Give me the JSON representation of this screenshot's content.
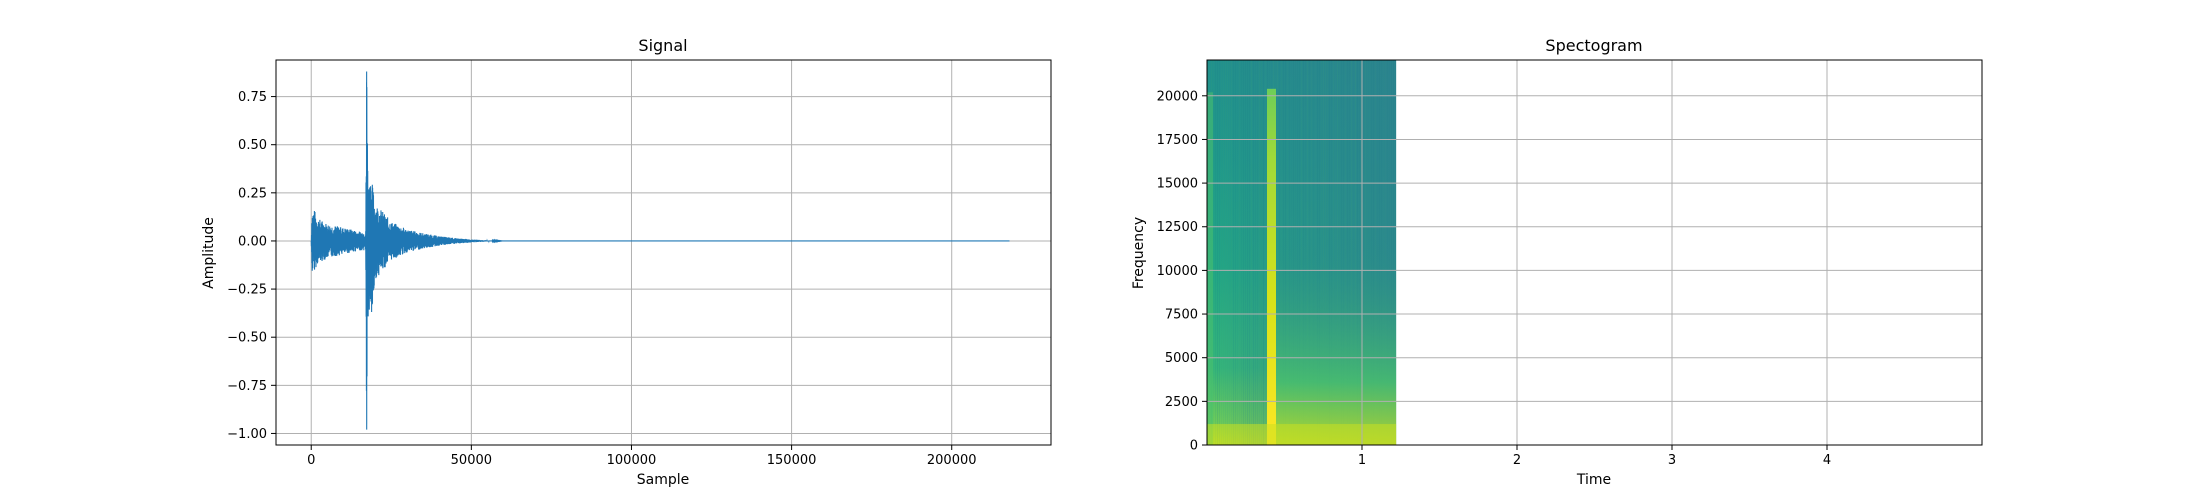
{
  "figure": {
    "background": "#ffffff"
  },
  "chart_data": [
    {
      "type": "line",
      "title": "Signal",
      "xlabel": "Sample",
      "ylabel": "Amplitude",
      "xlim": [
        -11000,
        231000
      ],
      "ylim": [
        -1.06,
        0.94
      ],
      "xticks": [
        0,
        50000,
        100000,
        150000,
        200000
      ],
      "xtick_labels": [
        "0",
        "50000",
        "100000",
        "150000",
        "200000"
      ],
      "yticks": [
        -1.0,
        -0.75,
        -0.5,
        -0.25,
        0.0,
        0.25,
        0.5,
        0.75
      ],
      "ytick_labels": [
        "−1.00",
        "−0.75",
        "−0.50",
        "−0.25",
        "0.00",
        "0.25",
        "0.50",
        "0.75"
      ],
      "grid": true,
      "color": "#1f77b4",
      "series": [
        {
          "envelope_top": [
            [
              0,
              0.0
            ],
            [
              200,
              0.16
            ],
            [
              800,
              0.17
            ],
            [
              2000,
              0.12
            ],
            [
              5000,
              0.09
            ],
            [
              10000,
              0.07
            ],
            [
              15000,
              0.05
            ],
            [
              17000,
              0.05
            ],
            [
              17300,
              0.88
            ],
            [
              17800,
              0.3
            ],
            [
              18600,
              0.35
            ],
            [
              20000,
              0.2
            ],
            [
              25000,
              0.1
            ],
            [
              30000,
              0.06
            ],
            [
              35000,
              0.04
            ],
            [
              40000,
              0.025
            ],
            [
              45000,
              0.015
            ],
            [
              50000,
              0.008
            ],
            [
              54000,
              0.004
            ],
            [
              60000,
              0.0
            ],
            [
              220000,
              0.0
            ]
          ],
          "envelope_bottom": [
            [
              0,
              0.0
            ],
            [
              200,
              -0.17
            ],
            [
              800,
              -0.16
            ],
            [
              2000,
              -0.12
            ],
            [
              5000,
              -0.09
            ],
            [
              10000,
              -0.07
            ],
            [
              15000,
              -0.05
            ],
            [
              17000,
              -0.05
            ],
            [
              17300,
              -0.98
            ],
            [
              17800,
              -0.4
            ],
            [
              18600,
              -0.48
            ],
            [
              20000,
              -0.2
            ],
            [
              25000,
              -0.1
            ],
            [
              30000,
              -0.06
            ],
            [
              35000,
              -0.04
            ],
            [
              40000,
              -0.025
            ],
            [
              45000,
              -0.015
            ],
            [
              50000,
              -0.008
            ],
            [
              54000,
              -0.004
            ],
            [
              60000,
              0.0
            ],
            [
              220000,
              0.0
            ]
          ]
        }
      ]
    },
    {
      "type": "heatmap",
      "title": "Spectogram",
      "xlabel": "Time",
      "ylabel": "Frequency",
      "xlim": [
        0,
        5.0
      ],
      "ylim": [
        0,
        22050
      ],
      "xticks": [
        1,
        2,
        3,
        4
      ],
      "xtick_labels": [
        "1",
        "2",
        "3",
        "4"
      ],
      "yticks": [
        0,
        2500,
        5000,
        7500,
        10000,
        12500,
        15000,
        17500,
        20000
      ],
      "ytick_labels": [
        "0",
        "2500",
        "5000",
        "7500",
        "10000",
        "12500",
        "15000",
        "17500",
        "20000"
      ],
      "grid": true,
      "colormap": "viridis",
      "data_extent": {
        "x": [
          0,
          1.22
        ],
        "y": [
          0,
          22050
        ]
      },
      "features": {
        "transient_time": 0.4,
        "transient_top_freq": 20400,
        "onset_top_freq": 20200,
        "noise_floor_color": "#2f7f8e"
      }
    }
  ]
}
